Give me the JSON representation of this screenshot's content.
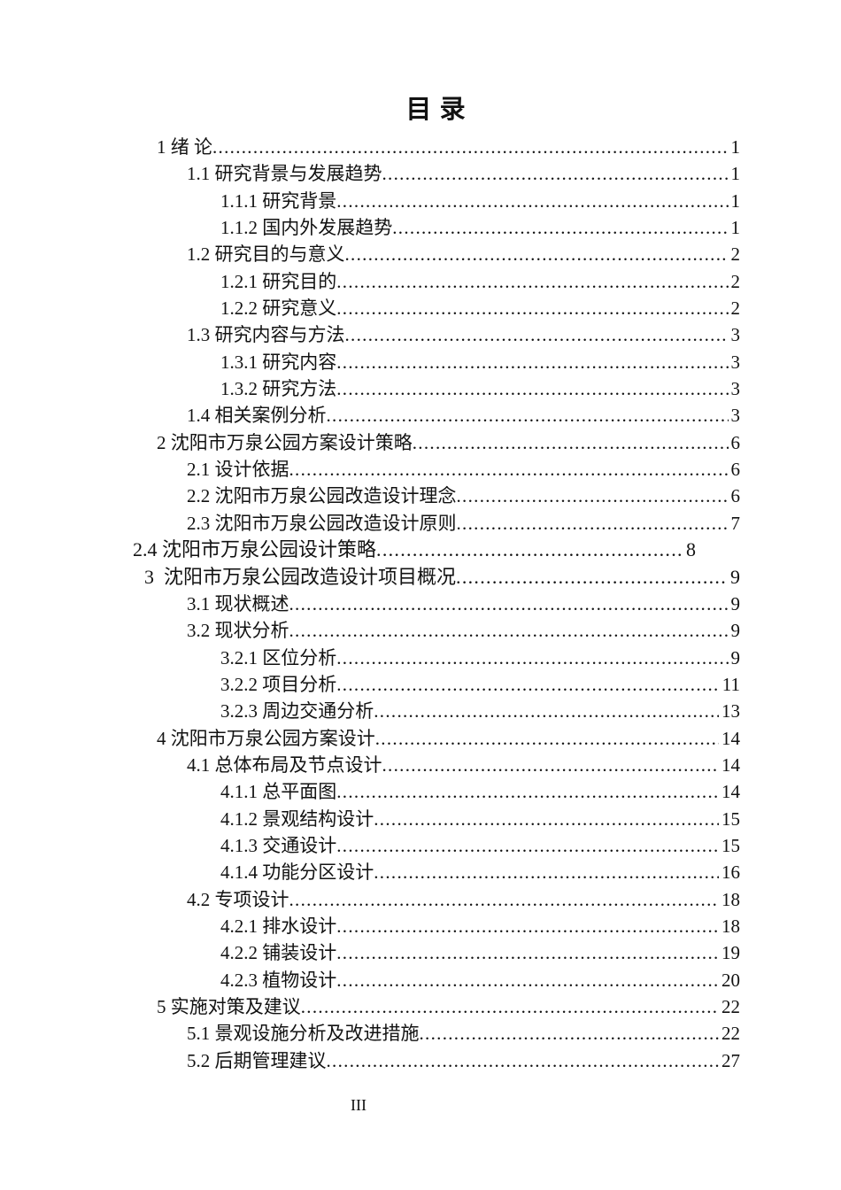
{
  "page": {
    "title": "目 录",
    "footer_page_number": "III",
    "background_color": "#ffffff",
    "text_color": "#121212"
  },
  "toc": {
    "entries": [
      {
        "label": "1 绪 论",
        "page": "1",
        "level": 1
      },
      {
        "label": "1.1 研究背景与发展趋势",
        "page": "1",
        "level": 2
      },
      {
        "label": "1.1.1 研究背景",
        "page": "1",
        "level": 3
      },
      {
        "label": "1.1.2 国内外发展趋势",
        "page": "1",
        "level": 3
      },
      {
        "label": "1.2 研究目的与意义",
        "page": "2",
        "level": 2
      },
      {
        "label": "1.2.1 研究目的",
        "page": "2",
        "level": 3
      },
      {
        "label": "1.2.2 研究意义",
        "page": "2",
        "level": 3
      },
      {
        "label": "1.3 研究内容与方法",
        "page": "3",
        "level": 2
      },
      {
        "label": "1.3.1 研究内容",
        "page": "3",
        "level": 3
      },
      {
        "label": "1.3.2 研究方法",
        "page": "3",
        "level": 3
      },
      {
        "label": "1.4 相关案例分析",
        "page": "3",
        "level": 2
      },
      {
        "label": "2 沈阳市万泉公园方案设计策略",
        "page": "6",
        "level": 1
      },
      {
        "label": "2.1 设计依据",
        "page": "6",
        "level": 2
      },
      {
        "label": "2.2 沈阳市万泉公园改造设计理念",
        "page": "6",
        "level": 2
      },
      {
        "label": "2.3 沈阳市万泉公园改造设计原则",
        "page": "7",
        "level": 2
      },
      {
        "label": "2.4 沈阳市万泉公园设计策略",
        "page": "8",
        "level": 1,
        "variant": "flush_short",
        "large": true
      },
      {
        "label": "3  沈阳市万泉公园改造设计项目概况",
        "page": "9",
        "level": 1,
        "variant": "chapter3",
        "large": true
      },
      {
        "label": "3.1 现状概述",
        "page": "9",
        "level": 2
      },
      {
        "label": "3.2 现状分析",
        "page": "9",
        "level": 2
      },
      {
        "label": "3.2.1 区位分析",
        "page": "9",
        "level": 3
      },
      {
        "label": "3.2.2 项目分析",
        "page": "11",
        "level": 3
      },
      {
        "label": "3.2.3 周边交通分析",
        "page": "13",
        "level": 3
      },
      {
        "label": "4 沈阳市万泉公园方案设计",
        "page": "14",
        "level": 1
      },
      {
        "label": "4.1 总体布局及节点设计",
        "page": "14",
        "level": 2
      },
      {
        "label": "4.1.1 总平面图",
        "page": "14",
        "level": 3
      },
      {
        "label": "4.1.2 景观结构设计",
        "page": "15",
        "level": 3
      },
      {
        "label": "4.1.3 交通设计",
        "page": "15",
        "level": 3
      },
      {
        "label": "4.1.4 功能分区设计",
        "page": "16",
        "level": 3
      },
      {
        "label": "4.2 专项设计",
        "page": "18",
        "level": 2
      },
      {
        "label": "4.2.1 排水设计",
        "page": "18",
        "level": 3
      },
      {
        "label": "4.2.2 铺装设计",
        "page": "19",
        "level": 3
      },
      {
        "label": "4.2.3 植物设计",
        "page": "20",
        "level": 3
      },
      {
        "label": "5 实施对策及建议",
        "page": "22",
        "level": 1
      },
      {
        "label": "5.1 景观设施分析及改进措施",
        "page": "22",
        "level": 2
      },
      {
        "label": "5.2 后期管理建议",
        "page": "27",
        "level": 2
      }
    ]
  }
}
